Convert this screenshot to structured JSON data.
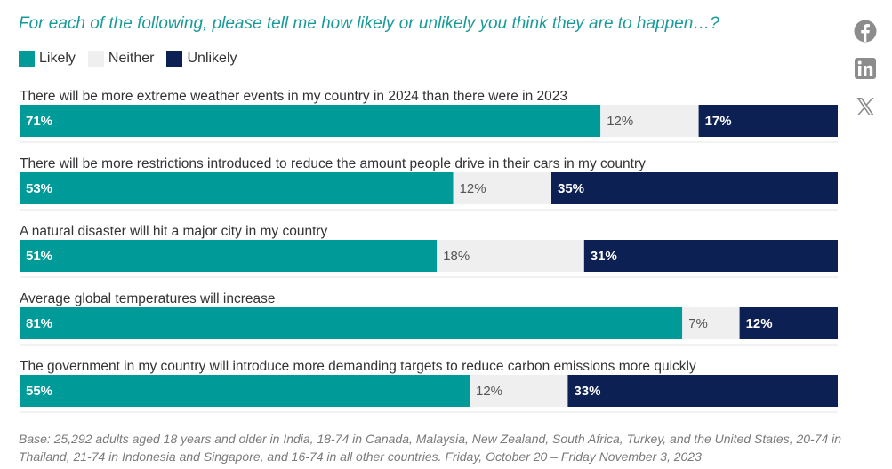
{
  "title": "For each of the following, please tell me how likely or unlikely you think they are to happen…?",
  "legend": [
    {
      "label": "Likely",
      "color": "#009a98"
    },
    {
      "label": "Neither",
      "color": "#efefef"
    },
    {
      "label": "Unlikely",
      "color": "#0c2054"
    }
  ],
  "social": {
    "facebook_icon": "facebook-icon",
    "linkedin_icon": "linkedin-icon",
    "x_icon": "x-icon"
  },
  "chart_data": {
    "type": "bar",
    "orientation": "horizontal",
    "stacked": true,
    "categories": [
      "There will be more extreme weather events in my country in 2024 than there were in 2023",
      "There will be more restrictions introduced to reduce the amount people drive in their cars in my country",
      "A natural disaster will hit a major city in my country",
      "Average global temperatures will increase",
      "The government in my country will introduce more demanding targets to reduce carbon emissions more quickly"
    ],
    "series": [
      {
        "name": "Likely",
        "color": "#009a98",
        "label_color": "#ffffff",
        "values": [
          71,
          53,
          51,
          81,
          55
        ]
      },
      {
        "name": "Neither",
        "color": "#efefef",
        "label_color": "#555555",
        "values": [
          12,
          12,
          18,
          7,
          12
        ]
      },
      {
        "name": "Unlikely",
        "color": "#0c2054",
        "label_color": "#ffffff",
        "values": [
          17,
          35,
          31,
          12,
          33
        ]
      }
    ],
    "value_suffix": "%",
    "xlim": [
      0,
      100
    ],
    "legend_position": "top-left"
  },
  "footnote": "Base: 25,292 adults aged 18 years and older in India, 18-74 in Canada, Malaysia, New Zealand, South Africa, Turkey, and the United States, 20-74 in Thailand, 21-74 in Indonesia and Singapore, and 16-74 in all other countries. Friday, October 20 – Friday November 3, 2023"
}
